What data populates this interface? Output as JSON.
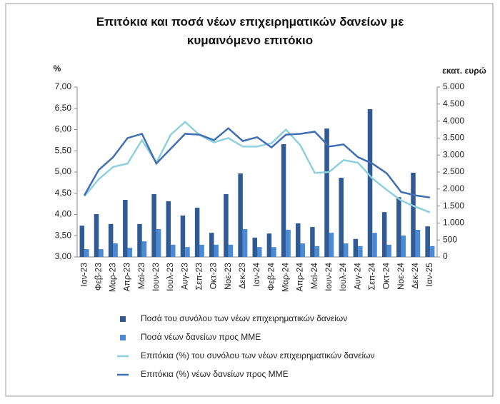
{
  "chart_data": {
    "type": "bar-line",
    "title": "Επιτόκια και ποσά νέων επιχειρηματικών δανείων με κυμαινόμενο επιτόκιο",
    "y_label": "%",
    "y2_label": "εκατ. ευρώ",
    "categories": [
      "Ιαν-23",
      "Φεβ-23",
      "Μαρ-23",
      "Απρ-23",
      "Μαϊ-23",
      "Ιουν-23",
      "Ιουλ-23",
      "Αυγ-23",
      "Σεπ-23",
      "Οκτ-23",
      "Νοε-23",
      "Δεκ-23",
      "Ιαν-24",
      "Φεβ-24",
      "Μαρ-24",
      "Απρ-24",
      "Μαϊ-24",
      "Ιουν-24",
      "Ιουλ-24",
      "Αυγ-24",
      "Σεπ-24",
      "Οκτ-24",
      "Νοε-24",
      "Δεκ-24",
      "Ιαν-25"
    ],
    "ylim": [
      3,
      7
    ],
    "yticks": [
      {
        "value": 3,
        "label": "3,00"
      },
      {
        "value": 3.5,
        "label": "3,50"
      },
      {
        "value": 4,
        "label": "4,00"
      },
      {
        "value": 4.5,
        "label": "4,50"
      },
      {
        "value": 5,
        "label": "5,00"
      },
      {
        "value": 5.5,
        "label": "5,50"
      },
      {
        "value": 6,
        "label": "6,00"
      },
      {
        "value": 6.5,
        "label": "6,50"
      },
      {
        "value": 7,
        "label": "7,00"
      }
    ],
    "y2lim": [
      0,
      5000
    ],
    "y2ticks": [
      0,
      500,
      {
        "value": 1000,
        "label": "1.000"
      },
      {
        "value": 1500,
        "label": "1.500"
      },
      {
        "value": 2000,
        "label": "2.000"
      },
      {
        "value": 2500,
        "label": "2.500"
      },
      {
        "value": 3000,
        "label": "3.000"
      },
      {
        "value": 3500,
        "label": "3.500"
      },
      {
        "value": 4000,
        "label": "4.000"
      },
      {
        "value": 4500,
        "label": "4.500"
      },
      {
        "value": 5000,
        "label": "5.000"
      }
    ],
    "grid": false,
    "series": [
      {
        "name": "Ποσά του συνόλου των νέων επιχειρηματικών δανείων",
        "kind": "bar",
        "axis": "y2",
        "color": "#2f5a93",
        "values": [
          920,
          1260,
          970,
          1680,
          970,
          1850,
          1640,
          1220,
          1450,
          710,
          1850,
          2460,
          570,
          690,
          3320,
          990,
          880,
          3780,
          2330,
          530,
          4350,
          1320,
          1760,
          2480,
          900
        ]
      },
      {
        "name": "Ποσά νέων δανείων προς ΜΜΕ",
        "kind": "bar",
        "axis": "y2",
        "color": "#4a8ad6",
        "values": [
          230,
          230,
          400,
          270,
          460,
          820,
          360,
          290,
          360,
          360,
          360,
          820,
          290,
          290,
          800,
          400,
          320,
          710,
          400,
          320,
          710,
          360,
          630,
          800,
          320
        ]
      },
      {
        "name": "Επιτόκια (%) του συνόλου των νέων επιχειρηματικών δανείων",
        "kind": "line",
        "axis": "y",
        "color": "#8fd0dd",
        "values": [
          4.43,
          4.83,
          5.12,
          5.2,
          5.75,
          5.22,
          5.88,
          6.18,
          5.87,
          5.7,
          5.8,
          5.6,
          5.6,
          5.68,
          6.0,
          5.63,
          4.98,
          5.0,
          5.28,
          5.22,
          4.85,
          4.58,
          4.33,
          4.18,
          4.05
        ]
      },
      {
        "name": "Επιτόκια (%) νέων δανείων προς ΜΜΕ",
        "kind": "line",
        "axis": "y",
        "color": "#3f6eb5",
        "values": [
          4.45,
          5.05,
          5.35,
          5.8,
          5.9,
          5.2,
          5.55,
          5.9,
          5.88,
          5.75,
          6.03,
          5.73,
          5.82,
          5.58,
          5.88,
          5.9,
          5.95,
          5.6,
          5.65,
          5.35,
          5.2,
          4.97,
          4.53,
          4.45,
          4.4
        ]
      }
    ]
  }
}
